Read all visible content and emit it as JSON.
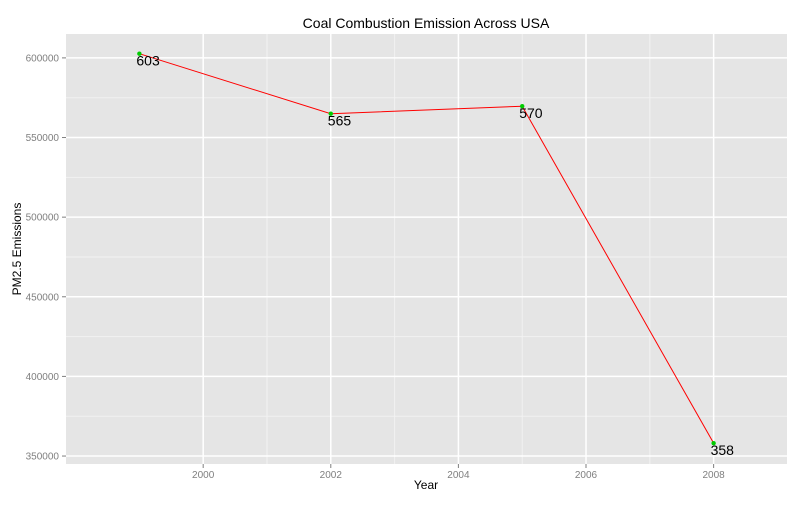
{
  "chart_data": {
    "type": "line",
    "title": "Coal Combustion Emission Across USA",
    "xlabel": "Year",
    "ylabel": "PM2.5 Emissions",
    "x": [
      1999,
      2002,
      2005,
      2008
    ],
    "series": [
      {
        "values": [
          602624,
          564940,
          569654,
          358084
        ],
        "labels": [
          "603",
          "565",
          "570",
          "358"
        ]
      }
    ],
    "xlim": [
      1997.85,
      2009.15
    ],
    "ylim": [
      345000,
      615000
    ],
    "x_ticks": [
      2000,
      2002,
      2004,
      2006,
      2008
    ],
    "x_tick_labels": [
      "2000",
      "2002",
      "2004",
      "2006",
      "2008"
    ],
    "y_ticks": [
      350000,
      400000,
      450000,
      500000,
      550000,
      600000
    ],
    "y_tick_labels": [
      "350000",
      "400000",
      "450000",
      "500000",
      "550000",
      "600000"
    ],
    "grid": true,
    "colors": {
      "line": "#ff0000",
      "point": "#00cc00",
      "panel": "#e5e5e5",
      "grid_major": "#ffffff",
      "grid_minor": "#f2f2f2"
    }
  }
}
